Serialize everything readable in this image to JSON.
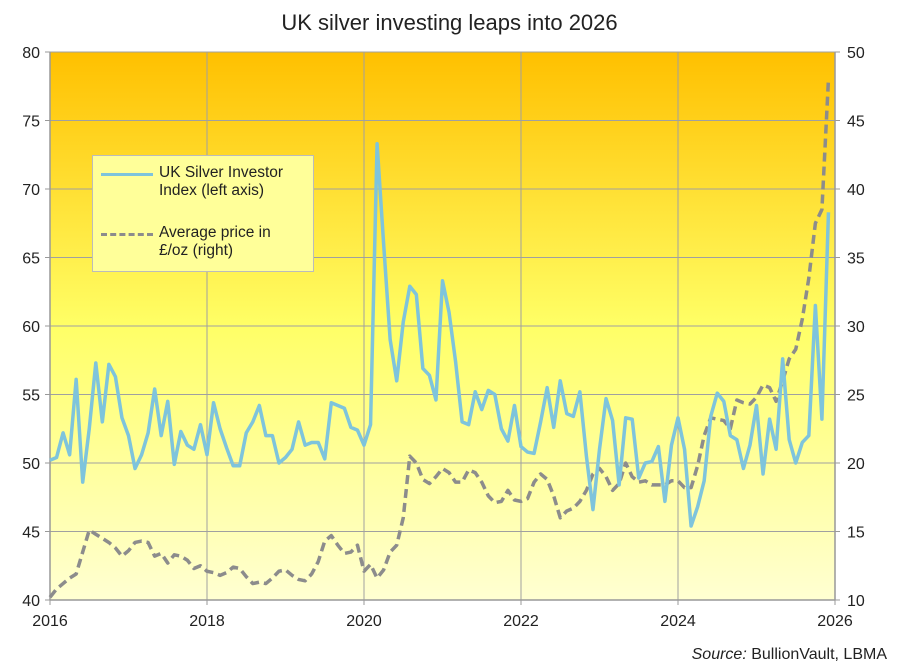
{
  "chart_data": {
    "type": "line",
    "title": "UK silver investing leaps into 2026",
    "x_start": 2016,
    "x_ticks": [
      "2016",
      "2018",
      "2020",
      "2022",
      "2024",
      "2026"
    ],
    "xlim": [
      2016,
      2026
    ],
    "y_left": {
      "lim": [
        40,
        80
      ],
      "ticks": [
        "40",
        "45",
        "50",
        "55",
        "60",
        "65",
        "70",
        "75",
        "80"
      ]
    },
    "y_right": {
      "lim": [
        10,
        50
      ],
      "ticks": [
        "10",
        "15",
        "20",
        "25",
        "30",
        "35",
        "40",
        "45",
        "50"
      ]
    },
    "grid": true,
    "legend_position": "upper-left",
    "series": [
      {
        "name": "UK Silver Investor Index (left axis)",
        "legend_lines": [
          "UK Silver Investor",
          "Index (left axis)"
        ],
        "axis": "left",
        "color": "#7ec4dc",
        "style": "solid",
        "frequency": "monthly",
        "values": [
          50.2,
          50.4,
          52.2,
          50.6,
          56.1,
          48.6,
          52.5,
          57.3,
          53,
          57.2,
          56.3,
          53.3,
          52,
          49.6,
          50.6,
          52.2,
          55.4,
          52,
          54.5,
          49.9,
          52.3,
          51.3,
          51,
          52.8,
          50.6,
          54.4,
          52.5,
          51.1,
          49.8,
          49.8,
          52.2,
          53,
          54.2,
          52,
          52,
          50,
          50.4,
          51,
          53,
          51.3,
          51.5,
          51.5,
          50.3,
          54.4,
          54.2,
          54,
          52.6,
          52.4,
          51.3,
          52.8,
          73.3,
          66,
          59,
          56,
          60.3,
          62.9,
          62.3,
          56.9,
          56.4,
          54.6,
          63.3,
          61,
          57.4,
          53,
          52.8,
          55.2,
          53.9,
          55.3,
          55,
          52.5,
          51.6,
          54.2,
          51.2,
          50.8,
          50.7,
          53,
          55.5,
          52.6,
          56,
          53.6,
          53.4,
          55.2,
          50.5,
          46.6,
          51,
          54.7,
          53.1,
          48.4,
          53.3,
          53.2,
          48.9,
          50,
          50.1,
          51.2,
          47.2,
          51.3,
          53.3,
          51,
          45.4,
          46.8,
          48.7,
          53.4,
          55.1,
          54.5,
          52,
          51.7,
          49.6,
          51.3,
          54.2,
          49.2,
          53.2,
          51,
          57.6,
          51.7,
          50,
          51.5,
          52,
          61.5,
          53.2,
          68.3
        ]
      },
      {
        "name": "Average price in £/oz (right)",
        "legend_lines": [
          "Average price in",
          "£/oz (right)"
        ],
        "axis": "right",
        "color": "#8c8c8c",
        "style": "dashed",
        "frequency": "monthly",
        "values": [
          10.2,
          10.8,
          11.2,
          11.6,
          11.9,
          13.5,
          15.1,
          14.8,
          14.5,
          14.2,
          13.8,
          13.2,
          13.6,
          14.2,
          14.3,
          14.2,
          13.2,
          13.4,
          12.7,
          13.3,
          13.2,
          12.9,
          12.3,
          12.5,
          12.1,
          12,
          11.8,
          12,
          12.4,
          12.3,
          11.7,
          11.2,
          11.3,
          11.2,
          11.6,
          12.1,
          12.2,
          11.8,
          11.5,
          11.4,
          11.9,
          12.8,
          14.3,
          14.7,
          14,
          13.4,
          13.5,
          14,
          12.1,
          12.6,
          11.6,
          12.2,
          13.5,
          14,
          16,
          20.5,
          20,
          18.8,
          18.5,
          19,
          19.6,
          19.3,
          18.6,
          18.6,
          19.5,
          19.3,
          18.6,
          17.6,
          17.1,
          17.2,
          18,
          17.3,
          17.2,
          17.4,
          18.6,
          19.2,
          18.8,
          17.6,
          16,
          16.5,
          16.7,
          17.2,
          18,
          19.2,
          19.6,
          19,
          18,
          18.5,
          20,
          19,
          18.6,
          18.7,
          18.4,
          18.4,
          18.4,
          18.7,
          18.7,
          18.2,
          18.2,
          19.8,
          22,
          23.3,
          23.2,
          23.1,
          22.5,
          24.6,
          24.4,
          24.3,
          24.8,
          25.7,
          25.5,
          24.5,
          26,
          27.6,
          28.3,
          30.5,
          33.5,
          37.5,
          38.5,
          48
        ]
      }
    ],
    "source_label": "Source:",
    "source_text": "BullionVault,  LBMA"
  }
}
